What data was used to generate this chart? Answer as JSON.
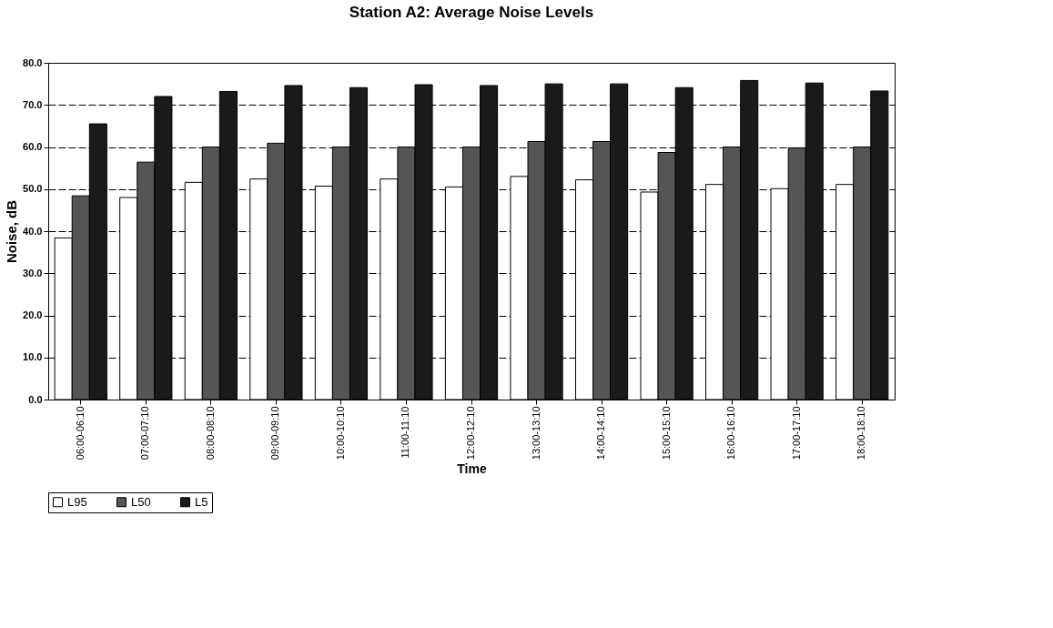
{
  "chart_data": {
    "type": "bar",
    "title": "Station A2: Average Noise Levels",
    "xlabel": "Time",
    "ylabel": "Noise, dB",
    "categories": [
      "06:00-06:10",
      "07:00-07:10",
      "08:00-08:10",
      "09:00-09:10",
      "10:00-10:10",
      "11:00-11:10",
      "12:00-12:10",
      "13:00-13:10",
      "14:00-14:10",
      "15:00-15:10",
      "16:00-16:10",
      "17:00-17:10",
      "18:00-18:10"
    ],
    "series": [
      {
        "name": "L95",
        "color": "#ffffff",
        "values": [
          38.4,
          48.0,
          51.6,
          52.4,
          50.7,
          52.4,
          50.5,
          53.0,
          52.2,
          49.3,
          51.1,
          50.1,
          51.1
        ]
      },
      {
        "name": "L50",
        "color": "#555555",
        "values": [
          48.4,
          56.4,
          60.0,
          60.9,
          60.0,
          60.0,
          60.0,
          61.3,
          61.3,
          58.7,
          60.0,
          59.8,
          60.0
        ]
      },
      {
        "name": "L5",
        "color": "#1a1a1a",
        "values": [
          65.5,
          72.0,
          73.2,
          74.6,
          74.1,
          74.8,
          74.6,
          75.0,
          75.0,
          74.1,
          75.8,
          75.2,
          73.3
        ]
      }
    ],
    "ylim": [
      0,
      80
    ],
    "yticks": [
      {
        "value": 0,
        "label": "0.0"
      },
      {
        "value": 10,
        "label": "10.0"
      },
      {
        "value": 20,
        "label": "20.0"
      },
      {
        "value": 30,
        "label": "30.0"
      },
      {
        "value": 40,
        "label": "40.0"
      },
      {
        "value": 50,
        "label": "50.0"
      },
      {
        "value": 60,
        "label": "60.0"
      },
      {
        "value": 70,
        "label": "70.0"
      },
      {
        "value": 80,
        "label": "80.0"
      }
    ],
    "grid": "y",
    "legend": "bottom"
  }
}
